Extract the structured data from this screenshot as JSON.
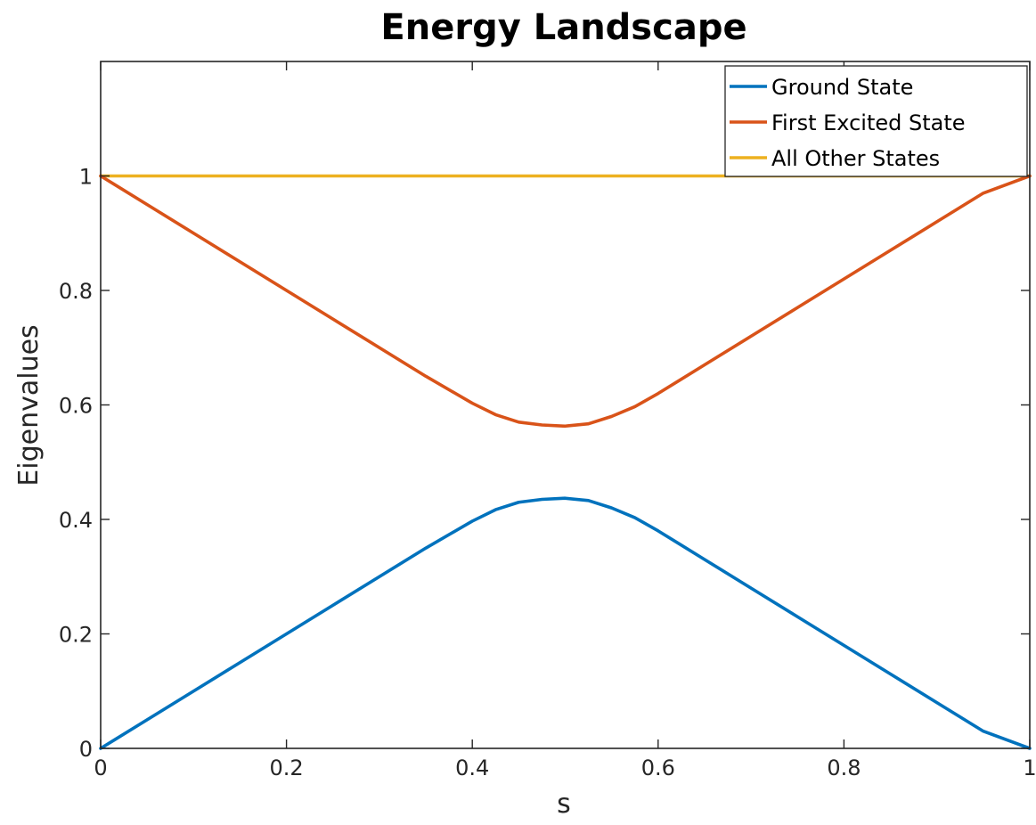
{
  "chart_data": {
    "type": "line",
    "title": "Energy Landscape",
    "xlabel": "s",
    "ylabel": "Eigenvalues",
    "xlim": [
      0,
      1
    ],
    "ylim": [
      0,
      1.2
    ],
    "x_ticks": [
      "0",
      "0.2",
      "0.4",
      "0.6",
      "0.8",
      "1"
    ],
    "x_tick_values": [
      0,
      0.2,
      0.4,
      0.6,
      0.8,
      1
    ],
    "y_ticks": [
      "0",
      "0.2",
      "0.4",
      "0.6",
      "0.8",
      "1"
    ],
    "y_tick_values": [
      0,
      0.2,
      0.4,
      0.6,
      0.8,
      1
    ],
    "grid": false,
    "legend_position": "top-right",
    "series": [
      {
        "name": "Ground State",
        "color": "#0072BD",
        "x": [
          0,
          0.05,
          0.1,
          0.15,
          0.2,
          0.25,
          0.3,
          0.35,
          0.4,
          0.425,
          0.45,
          0.475,
          0.5,
          0.525,
          0.55,
          0.575,
          0.6,
          0.65,
          0.7,
          0.75,
          0.8,
          0.85,
          0.9,
          0.95,
          1
        ],
        "values": [
          0,
          0.05,
          0.1,
          0.15,
          0.2,
          0.25,
          0.3,
          0.35,
          0.397,
          0.417,
          0.43,
          0.435,
          0.437,
          0.433,
          0.42,
          0.403,
          0.38,
          0.33,
          0.28,
          0.23,
          0.18,
          0.13,
          0.08,
          0.03,
          0
        ]
      },
      {
        "name": "First Excited State",
        "color": "#D95319",
        "x": [
          0,
          0.05,
          0.1,
          0.15,
          0.2,
          0.25,
          0.3,
          0.35,
          0.4,
          0.425,
          0.45,
          0.475,
          0.5,
          0.525,
          0.55,
          0.575,
          0.6,
          0.65,
          0.7,
          0.75,
          0.8,
          0.85,
          0.9,
          0.95,
          1
        ],
        "values": [
          1,
          0.95,
          0.9,
          0.85,
          0.8,
          0.75,
          0.7,
          0.65,
          0.603,
          0.583,
          0.57,
          0.565,
          0.563,
          0.567,
          0.58,
          0.597,
          0.62,
          0.67,
          0.72,
          0.77,
          0.82,
          0.87,
          0.92,
          0.97,
          1
        ]
      },
      {
        "name": "All Other States",
        "color": "#EDB120",
        "x": [
          0,
          1
        ],
        "values": [
          1,
          1
        ]
      }
    ]
  }
}
